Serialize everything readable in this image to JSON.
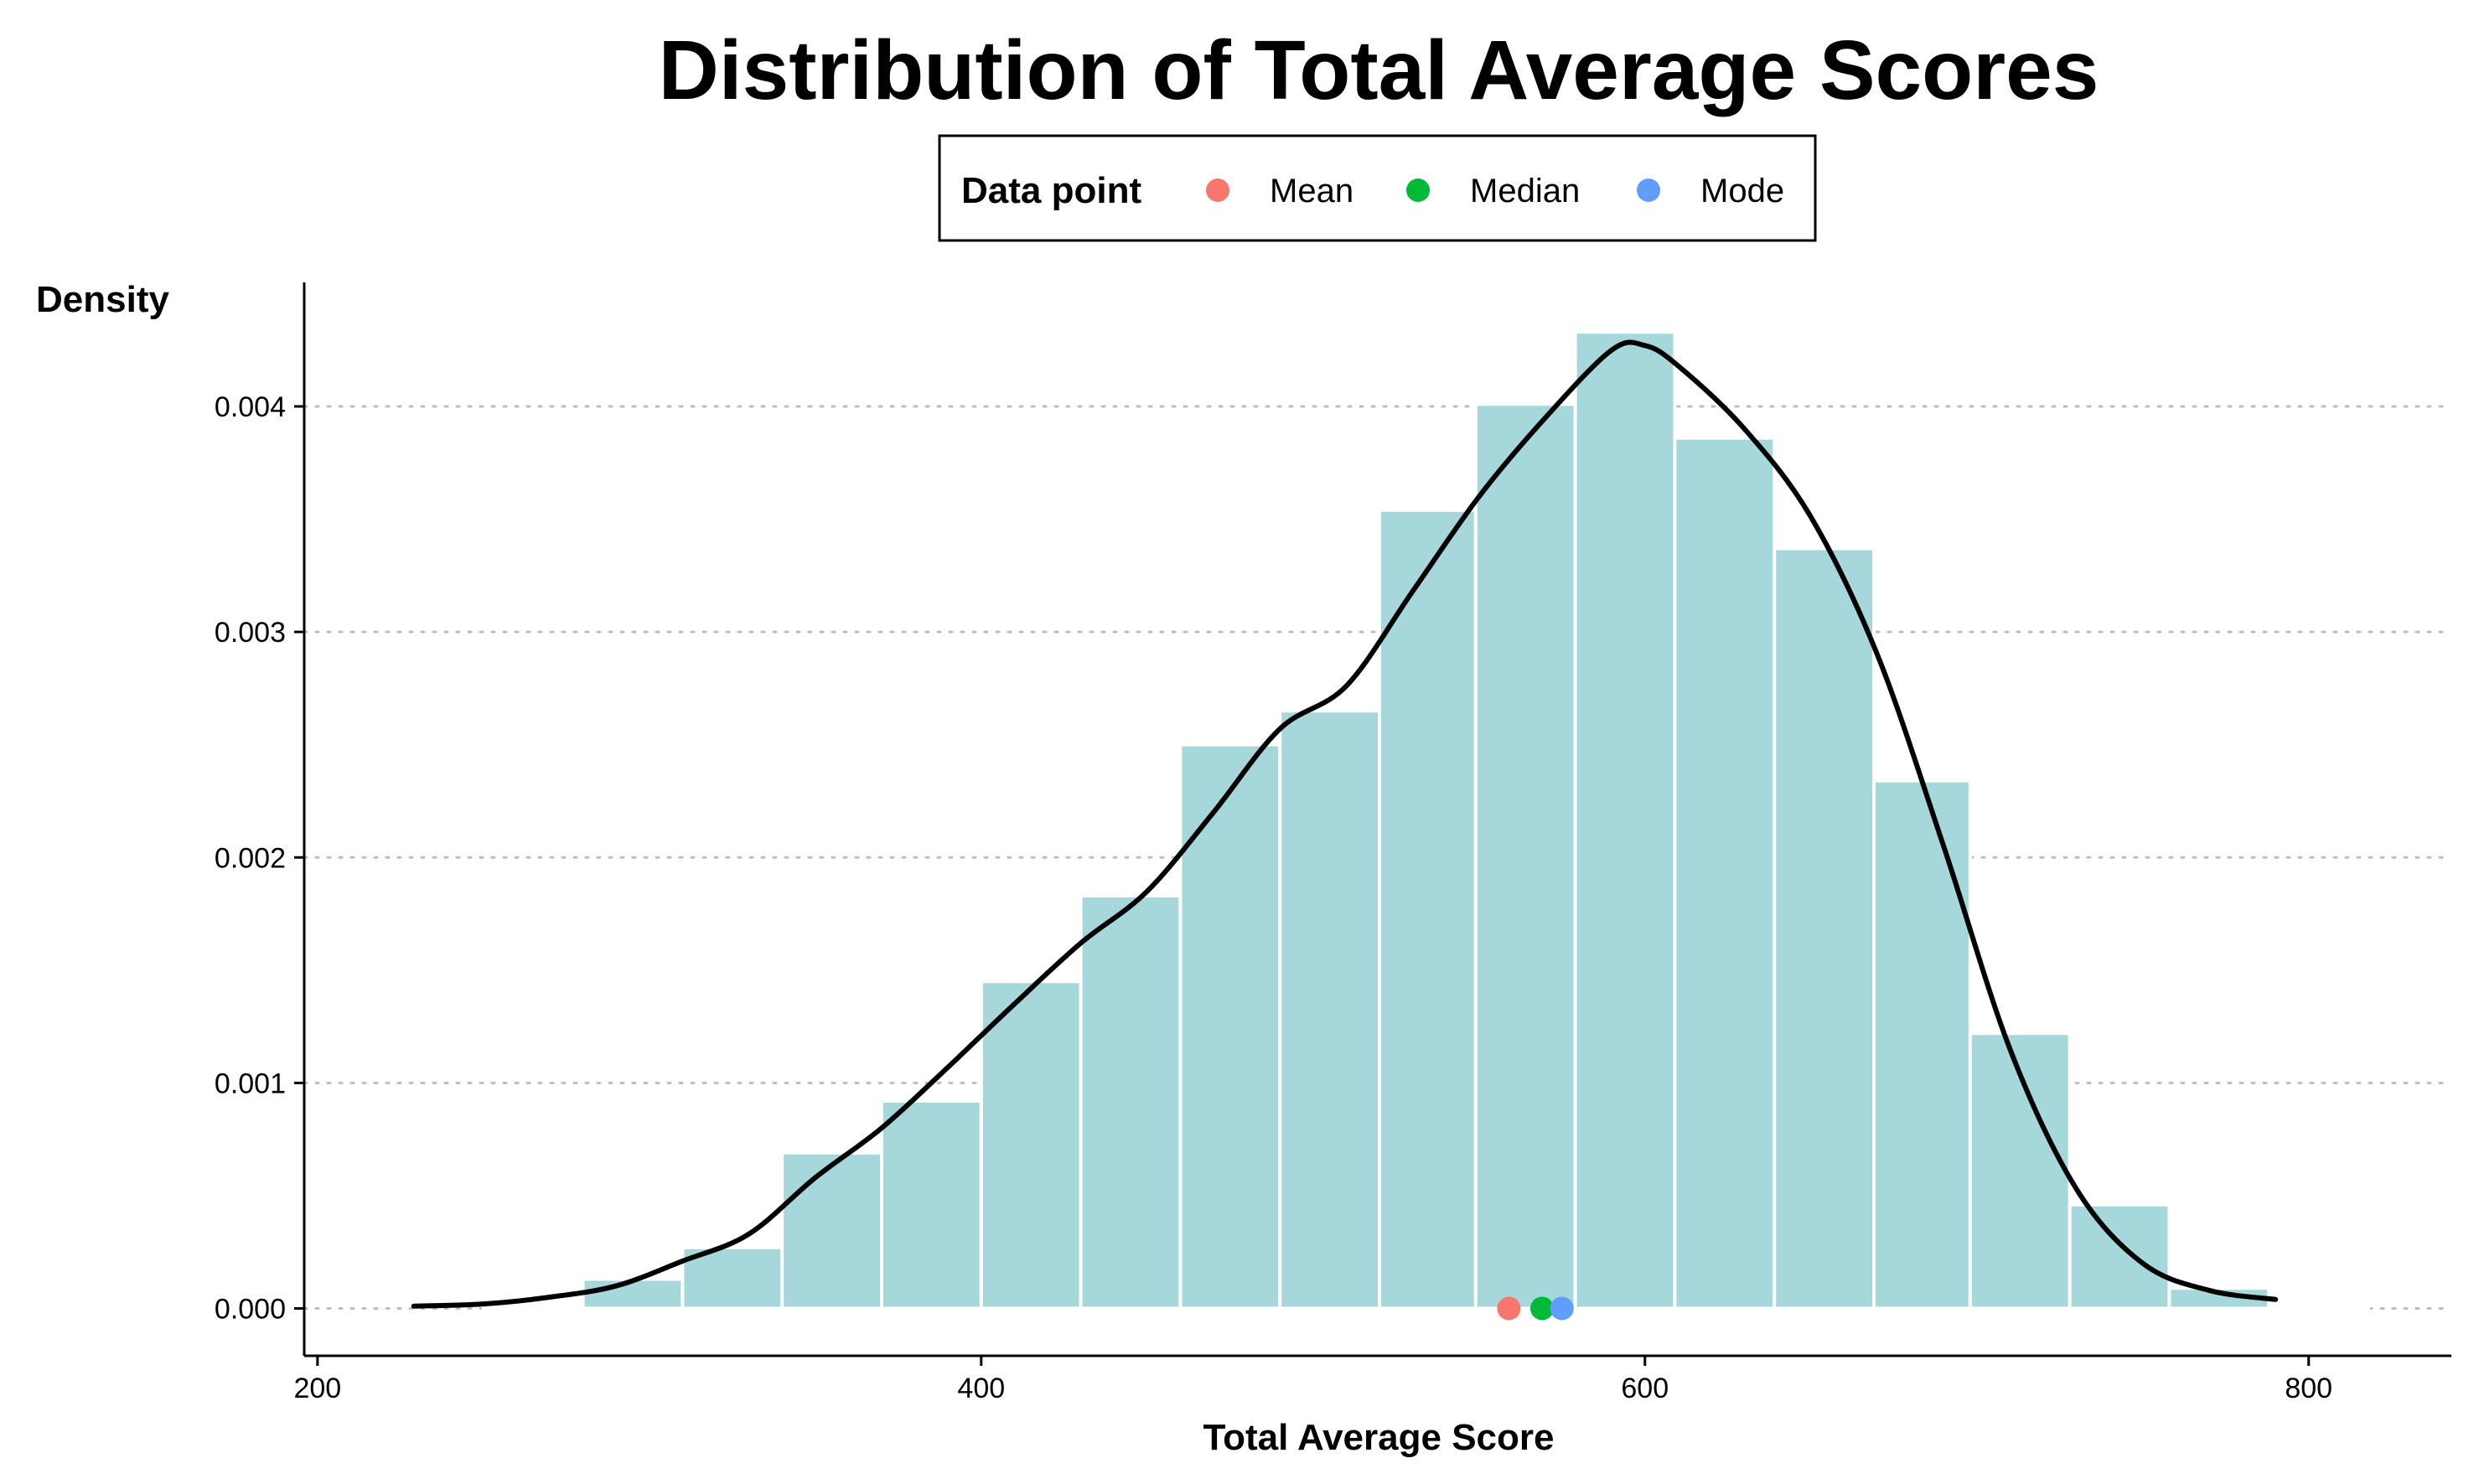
{
  "chart_data": {
    "type": "bar",
    "subtype": "histogram-with-density",
    "title": "Distribution of Total Average Scores",
    "xlabel": "Total Average Score",
    "ylabel": "Density",
    "xlim": [
      196,
      843
    ],
    "ylim": [
      -0.00021,
      0.00455
    ],
    "x_ticks": [
      {
        "value": 200,
        "label": "200"
      },
      {
        "value": 400,
        "label": "400"
      },
      {
        "value": 600,
        "label": "600"
      },
      {
        "value": 800,
        "label": "800"
      }
    ],
    "y_ticks": [
      {
        "value": 0.0,
        "label": "0.000"
      },
      {
        "value": 0.001,
        "label": "0.001"
      },
      {
        "value": 0.002,
        "label": "0.002"
      },
      {
        "value": 0.003,
        "label": "0.003"
      },
      {
        "value": 0.004,
        "label": "0.004"
      }
    ],
    "grid": "horizontal-dotted",
    "bar_color": "#a5d7db",
    "bar_edge_color": "#ffffff",
    "bins": [
      {
        "x0": 250,
        "x1": 280,
        "value": 1e-05
      },
      {
        "x0": 280,
        "x1": 310,
        "value": 0.00013
      },
      {
        "x0": 310,
        "x1": 340,
        "value": 0.00027
      },
      {
        "x0": 340,
        "x1": 370,
        "value": 0.00069
      },
      {
        "x0": 370,
        "x1": 400,
        "value": 0.00092
      },
      {
        "x0": 400,
        "x1": 430,
        "value": 0.00145
      },
      {
        "x0": 430,
        "x1": 460,
        "value": 0.00183
      },
      {
        "x0": 460,
        "x1": 490,
        "value": 0.0025
      },
      {
        "x0": 490,
        "x1": 520,
        "value": 0.00265
      },
      {
        "x0": 520,
        "x1": 549,
        "value": 0.00354
      },
      {
        "x0": 549,
        "x1": 579,
        "value": 0.00401
      },
      {
        "x0": 579,
        "x1": 609,
        "value": 0.00433
      },
      {
        "x0": 609,
        "x1": 639,
        "value": 0.00386
      },
      {
        "x0": 639,
        "x1": 669,
        "value": 0.00337
      },
      {
        "x0": 669,
        "x1": 698,
        "value": 0.00234
      },
      {
        "x0": 698,
        "x1": 728,
        "value": 0.00122
      },
      {
        "x0": 728,
        "x1": 758,
        "value": 0.00046
      },
      {
        "x0": 758,
        "x1": 788,
        "value": 9e-05
      },
      {
        "x0": 788,
        "x1": 818,
        "value": 1e-05
      }
    ],
    "density_curve": {
      "color": "#000000",
      "points": [
        [
          229,
          1e-05
        ],
        [
          250,
          2e-05
        ],
        [
          270,
          5e-05
        ],
        [
          290,
          0.0001
        ],
        [
          310,
          0.00021
        ],
        [
          330,
          0.00033
        ],
        [
          350,
          0.00058
        ],
        [
          370,
          0.0008
        ],
        [
          390,
          0.00107
        ],
        [
          410,
          0.00135
        ],
        [
          430,
          0.00162
        ],
        [
          450,
          0.00185
        ],
        [
          470,
          0.0022
        ],
        [
          490,
          0.00257
        ],
        [
          510,
          0.00276
        ],
        [
          530,
          0.00318
        ],
        [
          550,
          0.0036
        ],
        [
          570,
          0.00395
        ],
        [
          590,
          0.00425
        ],
        [
          600,
          0.00427
        ],
        [
          610,
          0.00418
        ],
        [
          630,
          0.0039
        ],
        [
          650,
          0.00351
        ],
        [
          670,
          0.0029
        ],
        [
          690,
          0.00205
        ],
        [
          710,
          0.00115
        ],
        [
          730,
          0.00053
        ],
        [
          750,
          0.0002
        ],
        [
          770,
          8e-05
        ],
        [
          790,
          4e-05
        ]
      ]
    },
    "legend": {
      "title": "Data point",
      "position": "top",
      "series": [
        {
          "name": "Mean",
          "color": "#f8766d",
          "x": 559,
          "y": 0
        },
        {
          "name": "Median",
          "color": "#00ba38",
          "x": 569,
          "y": 0
        },
        {
          "name": "Mode",
          "color": "#619cff",
          "x": 575,
          "y": 0
        }
      ]
    }
  }
}
